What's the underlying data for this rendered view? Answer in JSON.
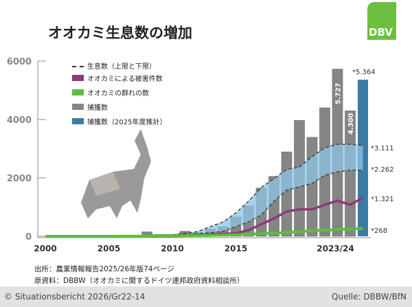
{
  "title": "オオカミ生息数の増加",
  "logo": "DBV",
  "source1": "出所：農業情報報告2025/26年版74ページ",
  "source2": "原資料：DBBW（オオカミに関するドイツ連邦政府資料相談所）",
  "footer_left": "© Situationsbericht 2026/Gr22-14",
  "footer_right": "Quelle: DBBW/BfN",
  "colors": {
    "population": "#8ec5e6",
    "damage": "#8b3a7a",
    "packs": "#5cbf3c",
    "culls": "#858585",
    "culls_2025": "#3a7ca5"
  },
  "chart_data": {
    "type": "bar",
    "ylim": [
      0,
      6000
    ],
    "yticks": [
      "0",
      "2000",
      "4000",
      "6000"
    ],
    "xticks": [
      "2000",
      "2005",
      "2010",
      "2015",
      "2023/24"
    ],
    "years": [
      2000,
      2001,
      2002,
      2003,
      2004,
      2005,
      2006,
      2007,
      2008,
      2009,
      2010,
      2011,
      2012,
      2013,
      2014,
      2015,
      2016,
      2017,
      2018,
      2019,
      2020,
      2021,
      2022,
      2023,
      2024,
      2025
    ],
    "legend": [
      {
        "label": "生息数（上限と下限）"
      },
      {
        "label": "オオカミによる被害件数"
      },
      {
        "label": "オオカミの群れの数"
      },
      {
        "label": "捕獲数"
      },
      {
        "label": "捕獲数（2025年度推計）"
      }
    ],
    "series": [
      {
        "name": "捕獲数",
        "type": "bar",
        "values": [
          0,
          0,
          0,
          0,
          0,
          0,
          20,
          40,
          150,
          60,
          60,
          170,
          130,
          250,
          330,
          660,
          1040,
          1650,
          2050,
          2890,
          3970,
          3390,
          4400,
          5727,
          4300,
          null
        ]
      },
      {
        "name": "捕獲数（2025年度推計）",
        "type": "bar",
        "values": [
          null,
          null,
          null,
          null,
          null,
          null,
          null,
          null,
          null,
          null,
          null,
          null,
          null,
          null,
          null,
          null,
          null,
          null,
          null,
          null,
          null,
          null,
          null,
          null,
          null,
          5364
        ]
      },
      {
        "name": "生息数 上限",
        "type": "line",
        "values": [
          null,
          null,
          null,
          null,
          null,
          null,
          null,
          null,
          null,
          null,
          50,
          100,
          160,
          330,
          490,
          800,
          1200,
          1670,
          1970,
          2290,
          2370,
          2730,
          3030,
          3150,
          3150,
          3111
        ]
      },
      {
        "name": "生息数 下限",
        "type": "line",
        "values": [
          null,
          null,
          null,
          null,
          null,
          null,
          null,
          null,
          null,
          null,
          20,
          50,
          90,
          120,
          170,
          330,
          490,
          730,
          1200,
          1580,
          1690,
          1810,
          2090,
          2210,
          2260,
          2262
        ]
      },
      {
        "name": "オオカミによる被害件数",
        "type": "line",
        "values": [
          0,
          0,
          0,
          0,
          0,
          0,
          0,
          0,
          10,
          20,
          30,
          40,
          50,
          60,
          80,
          100,
          210,
          410,
          610,
          850,
          920,
          920,
          1080,
          1220,
          1080,
          1321
        ]
      },
      {
        "name": "オオカミの群れの数",
        "type": "line",
        "values": [
          0,
          0,
          0,
          0,
          0,
          0,
          2,
          4,
          6,
          10,
          14,
          20,
          25,
          30,
          40,
          50,
          70,
          90,
          110,
          130,
          160,
          190,
          210,
          230,
          250,
          268
        ]
      }
    ],
    "labels": {
      "bar_2023": "5.727",
      "bar_2024": "4.300",
      "bar_2025": "*5.364",
      "upper": "*3.111",
      "lower": "*2.262",
      "damage": "*1.321",
      "packs": "*268"
    }
  }
}
